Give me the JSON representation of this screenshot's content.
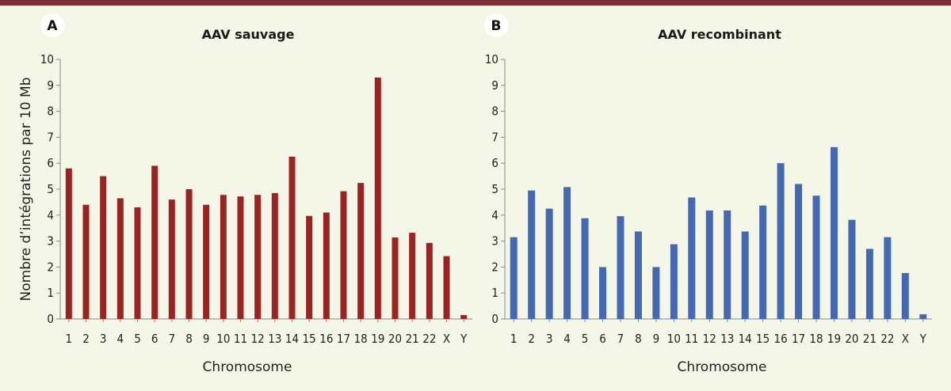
{
  "chart_data": [
    {
      "type": "bar",
      "panel": "A",
      "title": "AAV sauvage",
      "categories": [
        "1",
        "2",
        "3",
        "4",
        "5",
        "6",
        "7",
        "8",
        "9",
        "10",
        "11",
        "12",
        "13",
        "14",
        "15",
        "16",
        "17",
        "18",
        "19",
        "20",
        "21",
        "22",
        "X",
        "Y"
      ],
      "values": [
        5.8,
        4.4,
        5.5,
        4.65,
        4.3,
        5.9,
        4.6,
        5.0,
        4.4,
        4.78,
        4.72,
        4.78,
        4.85,
        6.25,
        3.97,
        4.1,
        4.92,
        5.24,
        9.3,
        3.14,
        3.32,
        2.93,
        2.42,
        0.15
      ],
      "xlabel": "Chromosome",
      "ylabel": "Nombre d’intégrations par 10 Mb",
      "ylim": [
        0,
        10
      ],
      "yticks": [
        0,
        1,
        2,
        3,
        4,
        5,
        6,
        7,
        8,
        9,
        10
      ],
      "color": "#9b2422",
      "grid": false
    },
    {
      "type": "bar",
      "panel": "B",
      "title": "AAV recombinant",
      "categories": [
        "1",
        "2",
        "3",
        "4",
        "5",
        "6",
        "7",
        "8",
        "9",
        "10",
        "11",
        "12",
        "13",
        "14",
        "15",
        "16",
        "17",
        "18",
        "19",
        "20",
        "21",
        "22",
        "X",
        "Y"
      ],
      "values": [
        3.15,
        4.95,
        4.25,
        5.08,
        3.88,
        2.0,
        3.96,
        3.37,
        2.0,
        2.88,
        4.68,
        4.18,
        4.18,
        3.37,
        4.37,
        6.0,
        5.2,
        4.75,
        6.62,
        3.82,
        2.7,
        3.15,
        1.77,
        0.18
      ],
      "xlabel": "Chromosome",
      "ylabel": "",
      "ylim": [
        0,
        10
      ],
      "yticks": [
        0,
        1,
        2,
        3,
        4,
        5,
        6,
        7,
        8,
        9,
        10
      ],
      "color": "#4469b2",
      "grid": false
    }
  ],
  "colors": {
    "top_bar": "#7a2e3a",
    "background": "#f4f6e8",
    "badge": "#ffffff"
  }
}
